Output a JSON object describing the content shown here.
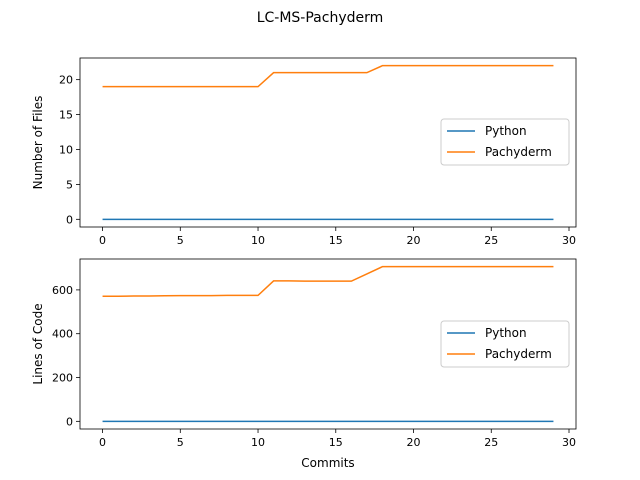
{
  "title": "LC-MS-Pachyderm",
  "colors": {
    "python": "#1f77b4",
    "pachyderm": "#ff7f0e"
  },
  "chart_data": [
    {
      "type": "line",
      "ylabel": "Number of Files",
      "xlabel": "",
      "xlim": [
        -1.45,
        30.45
      ],
      "ylim": [
        -1.1,
        23.1
      ],
      "xticks": [
        0,
        5,
        10,
        15,
        20,
        25,
        30
      ],
      "yticks": [
        0,
        5,
        10,
        15,
        20
      ],
      "legend": "center-right",
      "grid": false,
      "x": [
        0,
        1,
        2,
        3,
        4,
        5,
        6,
        7,
        8,
        9,
        10,
        11,
        12,
        13,
        14,
        15,
        16,
        17,
        18,
        19,
        20,
        21,
        22,
        23,
        24,
        25,
        26,
        27,
        28,
        29
      ],
      "series": [
        {
          "name": "Python",
          "color": "#1f77b4",
          "values": [
            0,
            0,
            0,
            0,
            0,
            0,
            0,
            0,
            0,
            0,
            0,
            0,
            0,
            0,
            0,
            0,
            0,
            0,
            0,
            0,
            0,
            0,
            0,
            0,
            0,
            0,
            0,
            0,
            0,
            0
          ]
        },
        {
          "name": "Pachyderm",
          "color": "#ff7f0e",
          "values": [
            19,
            19,
            19,
            19,
            19,
            19,
            19,
            19,
            19,
            19,
            19,
            21,
            21,
            21,
            21,
            21,
            21,
            21,
            22,
            22,
            22,
            22,
            22,
            22,
            22,
            22,
            22,
            22,
            22,
            22
          ]
        }
      ]
    },
    {
      "type": "line",
      "ylabel": "Lines of Code",
      "xlabel": "Commits",
      "xlim": [
        -1.45,
        30.45
      ],
      "ylim": [
        -35,
        741
      ],
      "xticks": [
        0,
        5,
        10,
        15,
        20,
        25,
        30
      ],
      "yticks": [
        0,
        200,
        400,
        600
      ],
      "legend": "center-right",
      "grid": false,
      "x": [
        0,
        1,
        2,
        3,
        4,
        5,
        6,
        7,
        8,
        9,
        10,
        11,
        12,
        13,
        14,
        15,
        16,
        17,
        18,
        19,
        20,
        21,
        22,
        23,
        24,
        25,
        26,
        27,
        28,
        29
      ],
      "series": [
        {
          "name": "Python",
          "color": "#1f77b4",
          "values": [
            0,
            0,
            0,
            0,
            0,
            0,
            0,
            0,
            0,
            0,
            0,
            0,
            0,
            0,
            0,
            0,
            0,
            0,
            0,
            0,
            0,
            0,
            0,
            0,
            0,
            0,
            0,
            0,
            0,
            0
          ]
        },
        {
          "name": "Pachyderm",
          "color": "#ff7f0e",
          "values": [
            571,
            571,
            572,
            572,
            573,
            574,
            574,
            574,
            575,
            575,
            575,
            641,
            641,
            640,
            640,
            640,
            640,
            673,
            706,
            706,
            706,
            706,
            706,
            706,
            706,
            706,
            706,
            706,
            706,
            706
          ]
        }
      ]
    }
  ]
}
